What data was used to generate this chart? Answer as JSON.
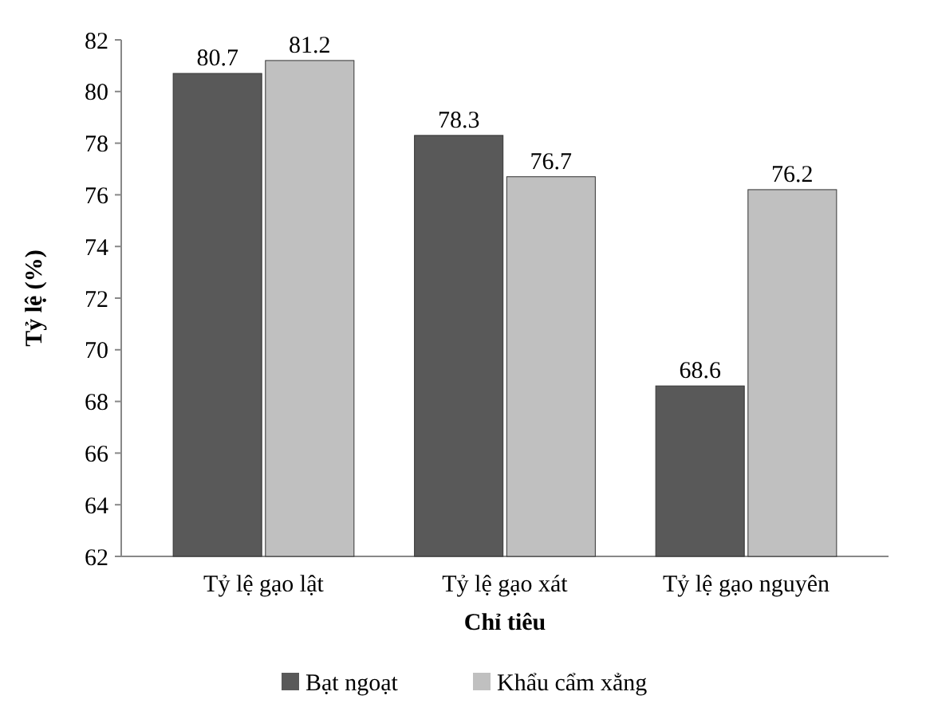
{
  "chart_data": {
    "type": "bar",
    "xlabel": "Chỉ tiêu",
    "ylabel": "Tỷ lệ (%)",
    "categories": [
      "Tỷ lệ gạo lật",
      "Tỷ lệ gạo xát",
      "Tỷ lệ gạo nguyên"
    ],
    "series": [
      {
        "name": "Bạt ngoạt",
        "color": "#595959",
        "values": [
          80.7,
          78.3,
          68.6
        ]
      },
      {
        "name": "Khẩu cẩm xẳng",
        "color": "#c0c0c0",
        "values": [
          81.2,
          76.7,
          76.2
        ]
      }
    ],
    "ylim": [
      62,
      82
    ],
    "yticks": [
      62,
      64,
      66,
      68,
      70,
      72,
      74,
      76,
      78,
      80,
      82
    ],
    "data_labels": true,
    "legend": "bottom",
    "grid": false
  }
}
